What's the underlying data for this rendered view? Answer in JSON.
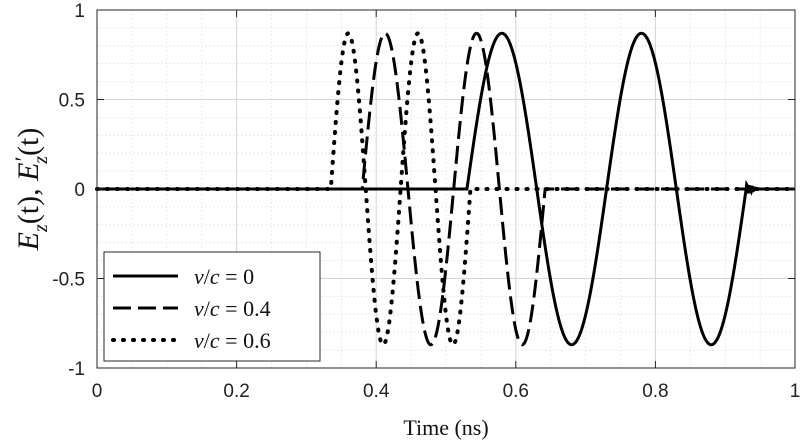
{
  "chart_data": {
    "type": "line",
    "title": "",
    "xlabel": "Time (ns)",
    "ylabel": "E_z(t), E'_z(t)",
    "ylabel_parts": {
      "a": "E",
      "a_sub": "z",
      "b": "(t), ",
      "c": "E",
      "c_prime": "′",
      "c_sub": "z",
      "d": "(t)"
    },
    "xlim": [
      0,
      1
    ],
    "ylim": [
      -1,
      1
    ],
    "xticks": [
      0,
      0.2,
      0.4,
      0.6,
      0.8,
      1
    ],
    "xtick_labels": [
      "0",
      "0.2",
      "0.4",
      "0.6",
      "0.8",
      "1"
    ],
    "yticks": [
      -1,
      -0.5,
      0,
      0.5,
      1
    ],
    "ytick_labels": [
      "-1",
      "-0.5",
      "0",
      "0.5",
      "1"
    ],
    "grid": true,
    "legend_position": "bottom-left",
    "amplitude": 0.87,
    "series": [
      {
        "name": "v/c = 0",
        "legend_math": {
          "v": "v",
          "slash": "/",
          "c": "c",
          "eq": " = ",
          "val": "0"
        },
        "style": "solid",
        "pulse_start_ns": 0.53,
        "period_ns": 0.2,
        "cycles": 2,
        "ringing_end_ns": 0.945
      },
      {
        "name": "v/c = 0.4",
        "legend_math": {
          "v": "v",
          "slash": "/",
          "c": "c",
          "eq": " = ",
          "val": "0.4"
        },
        "style": "dashed",
        "pulse_start_ns": 0.38,
        "period_ns": 0.131,
        "cycles": 2
      },
      {
        "name": "v/c = 0.6",
        "legend_math": {
          "v": "v",
          "slash": "/",
          "c": "c",
          "eq": " = ",
          "val": "0.6"
        },
        "style": "dotted",
        "pulse_start_ns": 0.335,
        "period_ns": 0.1,
        "cycles": 2
      }
    ]
  }
}
